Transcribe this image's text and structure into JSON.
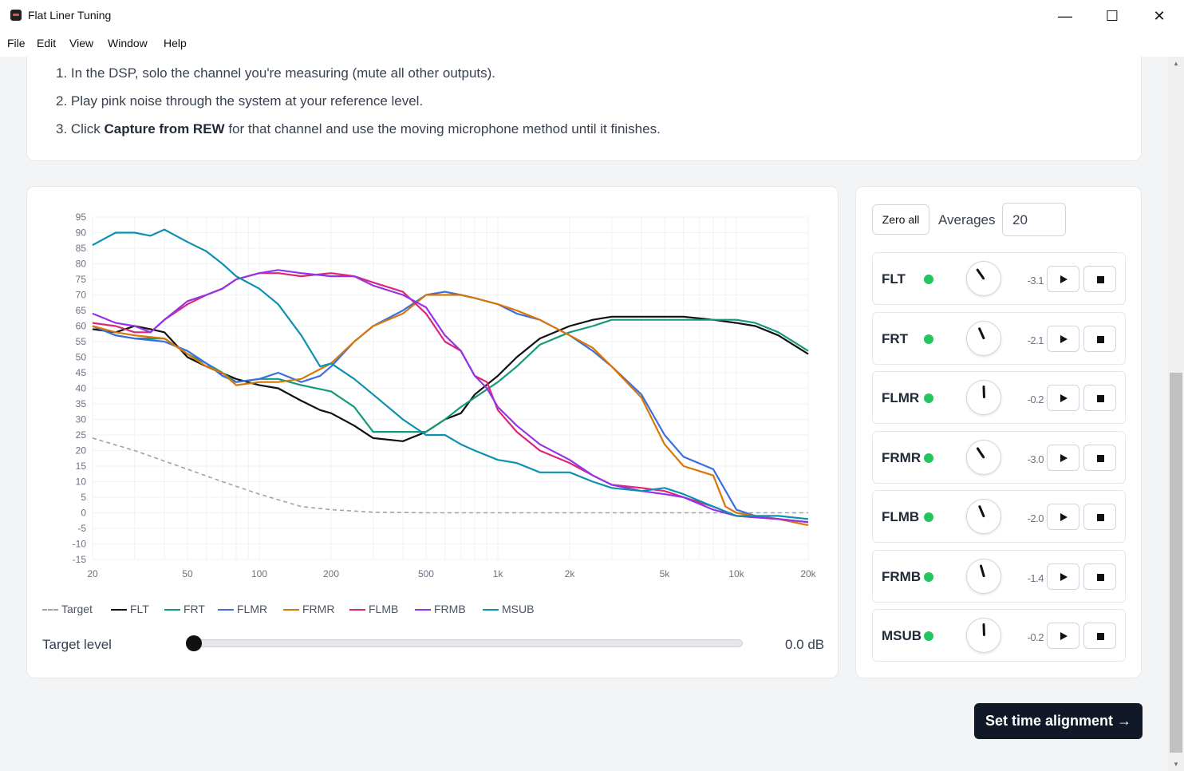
{
  "window": {
    "title": "Flat Liner Tuning",
    "minimize": "—",
    "maximize": "☐",
    "close": "✕"
  },
  "menu": [
    "File",
    "Edit",
    "View",
    "Window",
    "Help"
  ],
  "instructions": {
    "step1": "1. In the DSP, solo the channel you're measuring (mute all other outputs).",
    "step2": "2. Play pink noise through the system at your reference level.",
    "step3_prefix": "3. Click ",
    "step3_bold": "Capture from REW",
    "step3_suffix": " for that channel and use the moving microphone method until it finishes."
  },
  "chart_data": {
    "type": "line",
    "x_scale": "log",
    "xlim": [
      20,
      20000
    ],
    "ylim": [
      -15,
      95
    ],
    "grid": true,
    "x_ticks": [
      {
        "v": 20,
        "label": "20"
      },
      {
        "v": 50,
        "label": "50"
      },
      {
        "v": 100,
        "label": "100"
      },
      {
        "v": 200,
        "label": "200"
      },
      {
        "v": 500,
        "label": "500"
      },
      {
        "v": 1000,
        "label": "1k"
      },
      {
        "v": 2000,
        "label": "2k"
      },
      {
        "v": 5000,
        "label": "5k"
      },
      {
        "v": 10000,
        "label": "10k"
      },
      {
        "v": 20000,
        "label": "20k"
      }
    ],
    "y_ticks": [
      95,
      90,
      85,
      80,
      75,
      70,
      65,
      60,
      55,
      50,
      45,
      40,
      35,
      30,
      25,
      20,
      15,
      10,
      5,
      0,
      -5,
      -10,
      -15
    ],
    "legend_position": "bottom",
    "series": [
      {
        "name": "Target",
        "color": "#9ca3af",
        "dashed": true,
        "points": [
          [
            20,
            24
          ],
          [
            30,
            20
          ],
          [
            50,
            14
          ],
          [
            70,
            10
          ],
          [
            100,
            6
          ],
          [
            150,
            2
          ],
          [
            200,
            1
          ],
          [
            300,
            0.2
          ],
          [
            500,
            0
          ],
          [
            1000,
            0
          ],
          [
            20000,
            0
          ]
        ]
      },
      {
        "name": "FLT",
        "color": "#111111",
        "points": [
          [
            20,
            59
          ],
          [
            25,
            58
          ],
          [
            30,
            60
          ],
          [
            35,
            59
          ],
          [
            40,
            58
          ],
          [
            50,
            50
          ],
          [
            60,
            47
          ],
          [
            80,
            43
          ],
          [
            100,
            41
          ],
          [
            120,
            40
          ],
          [
            150,
            36
          ],
          [
            180,
            33
          ],
          [
            200,
            32
          ],
          [
            250,
            28
          ],
          [
            300,
            24
          ],
          [
            400,
            23
          ],
          [
            500,
            26
          ],
          [
            600,
            30
          ],
          [
            700,
            32
          ],
          [
            800,
            38
          ],
          [
            1000,
            44
          ],
          [
            1200,
            50
          ],
          [
            1500,
            56
          ],
          [
            2000,
            60
          ],
          [
            2500,
            62
          ],
          [
            3000,
            63
          ],
          [
            4000,
            63
          ],
          [
            5000,
            63
          ],
          [
            6000,
            63
          ],
          [
            8000,
            62
          ],
          [
            10000,
            61
          ],
          [
            12000,
            60
          ],
          [
            15000,
            57
          ],
          [
            20000,
            51
          ]
        ]
      },
      {
        "name": "FRT",
        "color": "#16997a",
        "points": [
          [
            20,
            60
          ],
          [
            25,
            57
          ],
          [
            30,
            56
          ],
          [
            40,
            56
          ],
          [
            50,
            51
          ],
          [
            60,
            48
          ],
          [
            70,
            45
          ],
          [
            80,
            42
          ],
          [
            100,
            43
          ],
          [
            120,
            43
          ],
          [
            150,
            41
          ],
          [
            200,
            39
          ],
          [
            250,
            34
          ],
          [
            300,
            26
          ],
          [
            400,
            26
          ],
          [
            500,
            26
          ],
          [
            600,
            30
          ],
          [
            700,
            34
          ],
          [
            800,
            37
          ],
          [
            1000,
            42
          ],
          [
            1200,
            47
          ],
          [
            1500,
            54
          ],
          [
            2000,
            58
          ],
          [
            2500,
            60
          ],
          [
            3000,
            62
          ],
          [
            4000,
            62
          ],
          [
            5000,
            62
          ],
          [
            6000,
            62
          ],
          [
            8000,
            62
          ],
          [
            10000,
            62
          ],
          [
            12000,
            61
          ],
          [
            15000,
            58
          ],
          [
            20000,
            52
          ]
        ]
      },
      {
        "name": "FLMR",
        "color": "#3b6fde",
        "points": [
          [
            20,
            60
          ],
          [
            25,
            57
          ],
          [
            30,
            56
          ],
          [
            40,
            55
          ],
          [
            50,
            52
          ],
          [
            60,
            48
          ],
          [
            70,
            44
          ],
          [
            80,
            42
          ],
          [
            100,
            43
          ],
          [
            120,
            45
          ],
          [
            150,
            42
          ],
          [
            180,
            44
          ],
          [
            200,
            47
          ],
          [
            250,
            55
          ],
          [
            300,
            60
          ],
          [
            400,
            65
          ],
          [
            500,
            70
          ],
          [
            600,
            71
          ],
          [
            700,
            70
          ],
          [
            800,
            69
          ],
          [
            1000,
            67
          ],
          [
            1200,
            64
          ],
          [
            1500,
            62
          ],
          [
            2000,
            57
          ],
          [
            2500,
            52
          ],
          [
            3000,
            47
          ],
          [
            4000,
            38
          ],
          [
            5000,
            25
          ],
          [
            6000,
            18
          ],
          [
            8000,
            14
          ],
          [
            10000,
            1
          ],
          [
            12000,
            -1
          ],
          [
            15000,
            -2
          ],
          [
            20000,
            -3
          ]
        ]
      },
      {
        "name": "FRMR",
        "color": "#d97706",
        "points": [
          [
            20,
            60
          ],
          [
            25,
            58
          ],
          [
            30,
            57
          ],
          [
            40,
            56
          ],
          [
            50,
            51
          ],
          [
            60,
            47
          ],
          [
            70,
            45
          ],
          [
            80,
            41
          ],
          [
            100,
            42
          ],
          [
            120,
            42
          ],
          [
            150,
            43
          ],
          [
            200,
            48
          ],
          [
            250,
            55
          ],
          [
            300,
            60
          ],
          [
            400,
            64
          ],
          [
            500,
            70
          ],
          [
            600,
            70
          ],
          [
            700,
            70
          ],
          [
            800,
            69
          ],
          [
            1000,
            67
          ],
          [
            1200,
            65
          ],
          [
            1500,
            62
          ],
          [
            2000,
            57
          ],
          [
            2500,
            53
          ],
          [
            3000,
            47
          ],
          [
            4000,
            37
          ],
          [
            5000,
            22
          ],
          [
            6000,
            15
          ],
          [
            8000,
            12
          ],
          [
            9000,
            2
          ],
          [
            10000,
            0
          ],
          [
            12000,
            -1
          ],
          [
            15000,
            -2
          ],
          [
            20000,
            -4
          ]
        ]
      },
      {
        "name": "FLMB",
        "color": "#db2777",
        "points": [
          [
            20,
            61
          ],
          [
            25,
            60
          ],
          [
            30,
            58
          ],
          [
            35,
            58
          ],
          [
            40,
            62
          ],
          [
            50,
            67
          ],
          [
            60,
            70
          ],
          [
            70,
            72
          ],
          [
            80,
            75
          ],
          [
            100,
            77
          ],
          [
            120,
            77
          ],
          [
            150,
            76
          ],
          [
            200,
            77
          ],
          [
            250,
            76
          ],
          [
            300,
            74
          ],
          [
            400,
            71
          ],
          [
            500,
            64
          ],
          [
            600,
            55
          ],
          [
            700,
            52
          ],
          [
            800,
            44
          ],
          [
            900,
            42
          ],
          [
            1000,
            33
          ],
          [
            1200,
            26
          ],
          [
            1500,
            20
          ],
          [
            2000,
            16
          ],
          [
            2500,
            12
          ],
          [
            3000,
            9
          ],
          [
            4000,
            8
          ],
          [
            5000,
            7
          ],
          [
            6000,
            5
          ],
          [
            8000,
            2
          ],
          [
            10000,
            -1
          ],
          [
            15000,
            -2
          ],
          [
            20000,
            -3
          ]
        ]
      },
      {
        "name": "FRMB",
        "color": "#9333ea",
        "points": [
          [
            20,
            64
          ],
          [
            25,
            61
          ],
          [
            30,
            60
          ],
          [
            35,
            58
          ],
          [
            40,
            62
          ],
          [
            50,
            68
          ],
          [
            60,
            70
          ],
          [
            70,
            72
          ],
          [
            80,
            75
          ],
          [
            100,
            77
          ],
          [
            120,
            78
          ],
          [
            150,
            77
          ],
          [
            200,
            76
          ],
          [
            250,
            76
          ],
          [
            300,
            73
          ],
          [
            400,
            70
          ],
          [
            500,
            66
          ],
          [
            600,
            57
          ],
          [
            700,
            52
          ],
          [
            800,
            44
          ],
          [
            900,
            40
          ],
          [
            1000,
            34
          ],
          [
            1200,
            28
          ],
          [
            1500,
            22
          ],
          [
            2000,
            17
          ],
          [
            2500,
            12
          ],
          [
            3000,
            9
          ],
          [
            4000,
            7
          ],
          [
            5000,
            6
          ],
          [
            6000,
            5
          ],
          [
            8000,
            1
          ],
          [
            10000,
            -1
          ],
          [
            15000,
            -2
          ],
          [
            20000,
            -3
          ]
        ]
      },
      {
        "name": "MSUB",
        "color": "#0e91b0",
        "points": [
          [
            20,
            86
          ],
          [
            25,
            90
          ],
          [
            30,
            90
          ],
          [
            35,
            89
          ],
          [
            40,
            91
          ],
          [
            50,
            87
          ],
          [
            60,
            84
          ],
          [
            70,
            80
          ],
          [
            80,
            76
          ],
          [
            100,
            72
          ],
          [
            120,
            67
          ],
          [
            150,
            57
          ],
          [
            180,
            47
          ],
          [
            200,
            48
          ],
          [
            250,
            43
          ],
          [
            300,
            38
          ],
          [
            400,
            30
          ],
          [
            500,
            25
          ],
          [
            600,
            25
          ],
          [
            700,
            22
          ],
          [
            800,
            20
          ],
          [
            1000,
            17
          ],
          [
            1200,
            16
          ],
          [
            1500,
            13
          ],
          [
            2000,
            13
          ],
          [
            2500,
            10
          ],
          [
            3000,
            8
          ],
          [
            4000,
            7
          ],
          [
            5000,
            8
          ],
          [
            6000,
            6
          ],
          [
            8000,
            2
          ],
          [
            10000,
            -1
          ],
          [
            15000,
            -1
          ],
          [
            20000,
            -2
          ]
        ]
      }
    ]
  },
  "legend": [
    "Target",
    "FLT",
    "FRT",
    "FLMR",
    "FRMR",
    "FLMB",
    "FRMB",
    "MSUB"
  ],
  "target_level": {
    "label": "Target level",
    "value": "0.0 dB",
    "slider_fraction": 0.0
  },
  "controls": {
    "zero_all": "Zero all",
    "averages_label": "Averages",
    "averages_value": "20"
  },
  "channels": [
    {
      "name": "FLT",
      "gain": "-3.1",
      "knob_deg": -35
    },
    {
      "name": "FRT",
      "gain": "-2.1",
      "knob_deg": -24
    },
    {
      "name": "FLMR",
      "gain": "-0.2",
      "knob_deg": -2
    },
    {
      "name": "FRMR",
      "gain": "-3.0",
      "knob_deg": -34
    },
    {
      "name": "FLMB",
      "gain": "-2.0",
      "knob_deg": -23
    },
    {
      "name": "FRMB",
      "gain": "-1.4",
      "knob_deg": -16
    },
    {
      "name": "MSUB",
      "gain": "-0.2",
      "knob_deg": -2
    }
  ],
  "status_color": "#22c55e",
  "next_button": "Set time alignment →"
}
